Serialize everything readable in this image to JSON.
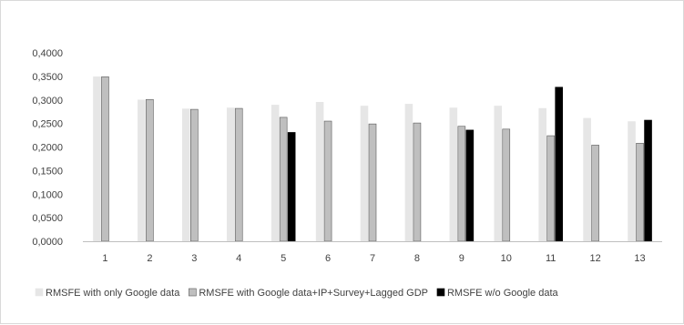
{
  "chart_data": {
    "type": "bar",
    "title": "",
    "xlabel": "",
    "ylabel": "",
    "ylim": [
      0,
      0.4
    ],
    "ytick_step": 0.05,
    "ytick_labels": [
      "0,0000",
      "0,0500",
      "0,1000",
      "0,1500",
      "0,2000",
      "0,2500",
      "0,3000",
      "0,3500",
      "0,4000"
    ],
    "grid": false,
    "legend_position": "bottom",
    "categories": [
      "1",
      "2",
      "3",
      "4",
      "5",
      "6",
      "7",
      "8",
      "9",
      "10",
      "11",
      "12",
      "13"
    ],
    "series": [
      {
        "name": "RMSFE with only Google data",
        "color": "#e6e6e6",
        "stroke": "#e6e6e6",
        "values": [
          0.349,
          0.3,
          0.281,
          0.283,
          0.289,
          0.295,
          0.287,
          0.291,
          0.283,
          0.287,
          0.282,
          0.261,
          0.254
        ]
      },
      {
        "name": "RMSFE with Google data+IP+Survey+Lagged GDP",
        "color": "#bfbfbf",
        "stroke": "#595959",
        "values": [
          0.349,
          0.301,
          0.28,
          0.282,
          0.263,
          0.255,
          0.249,
          0.251,
          0.244,
          0.238,
          0.224,
          0.204,
          0.208
        ]
      },
      {
        "name": "RMSFE w/o Google data",
        "color": "#000000",
        "stroke": "#000000",
        "values": [
          null,
          null,
          null,
          null,
          0.231,
          null,
          null,
          null,
          0.236,
          null,
          0.327,
          null,
          0.257
        ]
      }
    ]
  }
}
